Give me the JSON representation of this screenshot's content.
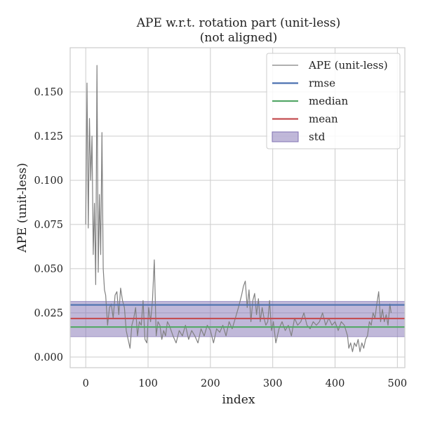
{
  "chart_data": {
    "type": "line",
    "title_line1": "APE w.r.t. rotation part (unit-less)",
    "title_line2": "(not aligned)",
    "xlabel": "index",
    "ylabel": "APE (unit-less)",
    "xlim": [
      -25,
      512
    ],
    "ylim": [
      -0.006,
      0.175
    ],
    "x_ticks": [
      0,
      100,
      200,
      300,
      400,
      500
    ],
    "x_tick_labels": [
      "0",
      "100",
      "200",
      "300",
      "400",
      "500"
    ],
    "y_ticks": [
      0.0,
      0.025,
      0.05,
      0.075,
      0.1,
      0.125,
      0.15
    ],
    "y_tick_labels": [
      "0.000",
      "0.025",
      "0.050",
      "0.075",
      "0.100",
      "0.125",
      "0.150"
    ],
    "grid": true,
    "legend_position": "top-right",
    "stats": {
      "rmse": 0.0295,
      "median": 0.017,
      "mean": 0.0218,
      "std_low": 0.0115,
      "std_high": 0.0315
    },
    "legend": [
      {
        "label": "APE (unit-less)",
        "kind": "line",
        "color": "#808080"
      },
      {
        "label": "rmse",
        "kind": "line",
        "color": "#4c72b0"
      },
      {
        "label": "median",
        "kind": "line",
        "color": "#55a868"
      },
      {
        "label": "mean",
        "kind": "line",
        "color": "#c44e52"
      },
      {
        "label": "std",
        "kind": "patch",
        "color": "#8172b3"
      }
    ],
    "series": [
      {
        "name": "APE (unit-less)",
        "color": "#808080",
        "x": [
          0,
          2,
          4,
          6,
          8,
          10,
          12,
          14,
          16,
          18,
          20,
          22,
          24,
          26,
          28,
          30,
          32,
          35,
          38,
          41,
          44,
          47,
          50,
          53,
          56,
          59,
          62,
          65,
          68,
          71,
          74,
          77,
          80,
          83,
          86,
          89,
          92,
          95,
          98,
          101,
          104,
          107,
          110,
          113,
          116,
          119,
          122,
          125,
          128,
          131,
          134,
          137,
          140,
          145,
          150,
          155,
          160,
          165,
          170,
          175,
          180,
          185,
          190,
          195,
          200,
          205,
          210,
          215,
          220,
          225,
          230,
          235,
          240,
          245,
          250,
          253,
          256,
          259,
          262,
          265,
          268,
          271,
          274,
          277,
          280,
          283,
          286,
          289,
          292,
          295,
          298,
          301,
          305,
          310,
          315,
          320,
          325,
          330,
          335,
          340,
          345,
          350,
          355,
          360,
          365,
          370,
          375,
          380,
          385,
          390,
          395,
          400,
          405,
          410,
          415,
          420,
          422,
          425,
          428,
          431,
          434,
          437,
          440,
          443,
          446,
          449,
          452,
          455,
          458,
          461,
          464,
          467,
          470,
          473,
          476,
          479,
          482,
          485,
          488,
          490
        ],
        "y": [
          0.075,
          0.155,
          0.073,
          0.135,
          0.1,
          0.125,
          0.058,
          0.087,
          0.041,
          0.165,
          0.048,
          0.092,
          0.058,
          0.127,
          0.05,
          0.038,
          0.035,
          0.018,
          0.028,
          0.03,
          0.022,
          0.035,
          0.037,
          0.024,
          0.039,
          0.032,
          0.028,
          0.015,
          0.01,
          0.005,
          0.018,
          0.022,
          0.028,
          0.012,
          0.02,
          0.018,
          0.032,
          0.01,
          0.008,
          0.028,
          0.02,
          0.032,
          0.055,
          0.012,
          0.02,
          0.018,
          0.01,
          0.015,
          0.012,
          0.02,
          0.018,
          0.015,
          0.012,
          0.008,
          0.015,
          0.012,
          0.018,
          0.01,
          0.015,
          0.012,
          0.008,
          0.016,
          0.012,
          0.018,
          0.015,
          0.008,
          0.016,
          0.014,
          0.018,
          0.012,
          0.02,
          0.016,
          0.022,
          0.028,
          0.035,
          0.04,
          0.043,
          0.028,
          0.038,
          0.02,
          0.032,
          0.036,
          0.024,
          0.033,
          0.02,
          0.028,
          0.022,
          0.018,
          0.02,
          0.032,
          0.015,
          0.02,
          0.008,
          0.016,
          0.02,
          0.015,
          0.018,
          0.012,
          0.022,
          0.018,
          0.02,
          0.025,
          0.018,
          0.016,
          0.02,
          0.018,
          0.02,
          0.025,
          0.018,
          0.022,
          0.018,
          0.02,
          0.015,
          0.02,
          0.018,
          0.012,
          0.005,
          0.008,
          0.003,
          0.008,
          0.006,
          0.01,
          0.003,
          0.008,
          0.005,
          0.01,
          0.012,
          0.02,
          0.018,
          0.025,
          0.022,
          0.03,
          0.037,
          0.02,
          0.027,
          0.02,
          0.024,
          0.018,
          0.03,
          0.025
        ]
      }
    ]
  }
}
